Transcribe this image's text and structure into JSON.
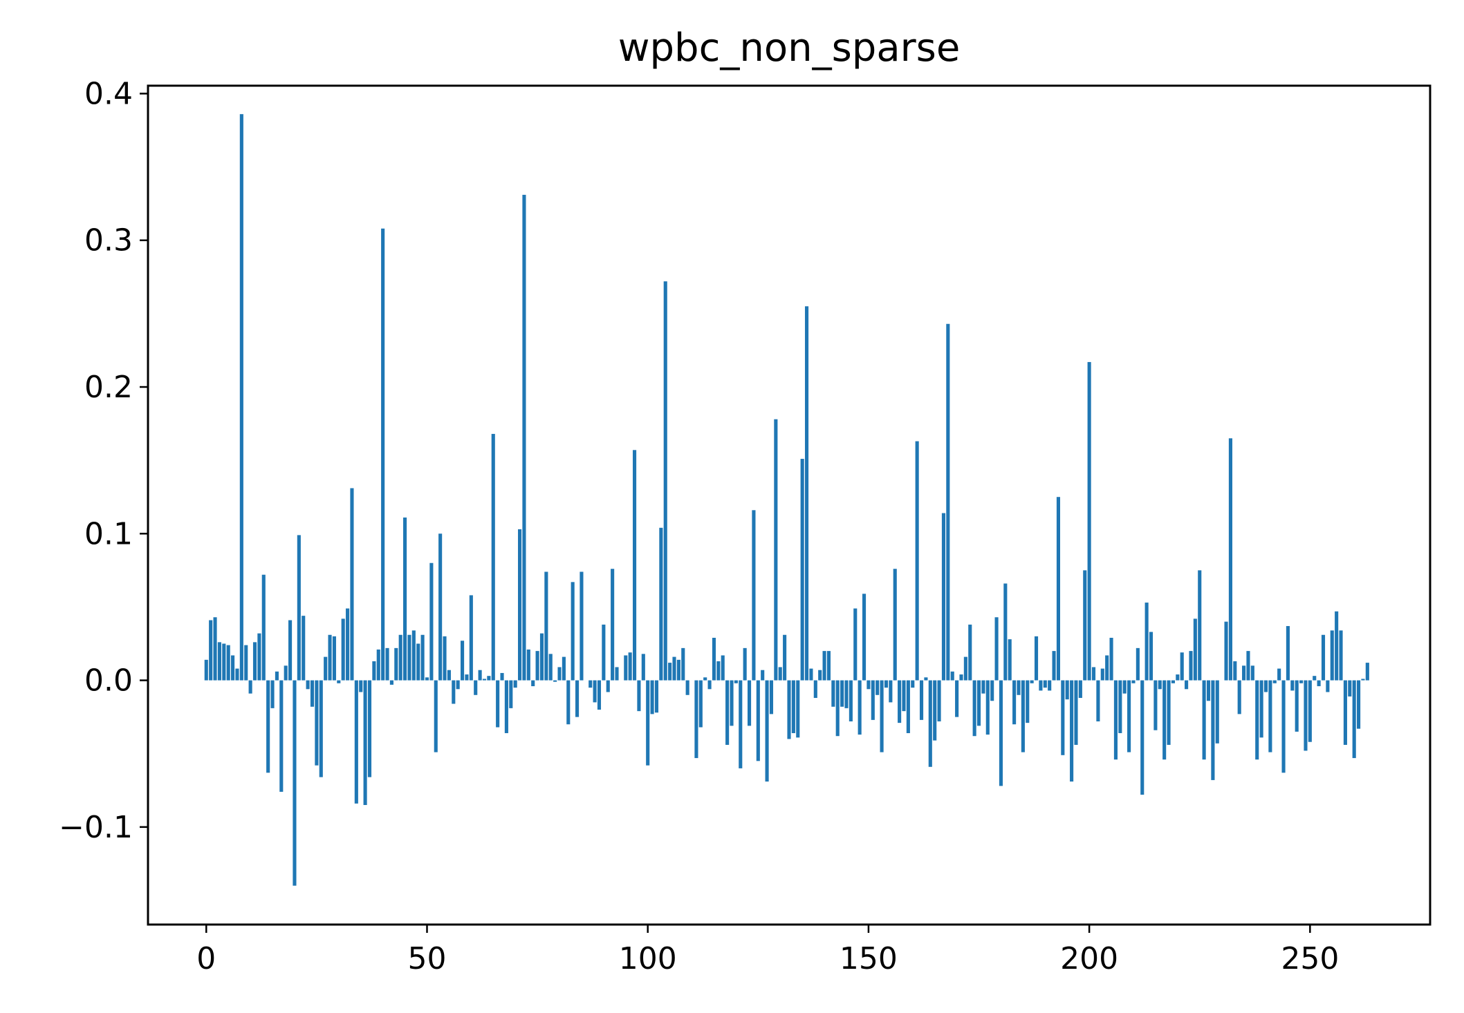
{
  "chart_data": {
    "type": "bar",
    "title": "wpbc_non_sparse",
    "xlabel": "",
    "ylabel": "",
    "xlim": [
      -13.2,
      277.2
    ],
    "ylim": [
      -0.1665,
      0.4054
    ],
    "xticks": [
      0,
      50,
      100,
      150,
      200,
      250
    ],
    "xtick_labels": [
      "0",
      "50",
      "100",
      "150",
      "200",
      "250"
    ],
    "yticks": [
      -0.1,
      0.0,
      0.1,
      0.2,
      0.3,
      0.4
    ],
    "ytick_labels": [
      "−0.1",
      "0.0",
      "0.1",
      "0.2",
      "0.3",
      "0.4"
    ],
    "bar_color": "#1f77b4",
    "grid": false,
    "x": [
      0,
      1,
      2,
      3,
      4,
      5,
      6,
      7,
      8,
      9,
      10,
      11,
      12,
      13,
      14,
      15,
      16,
      17,
      18,
      19,
      20,
      21,
      22,
      23,
      24,
      25,
      26,
      27,
      28,
      29,
      30,
      31,
      32,
      33,
      34,
      35,
      36,
      37,
      38,
      39,
      40,
      41,
      42,
      43,
      44,
      45,
      46,
      47,
      48,
      49,
      50,
      51,
      52,
      53,
      54,
      55,
      56,
      57,
      58,
      59,
      60,
      61,
      62,
      63,
      64,
      65,
      66,
      67,
      68,
      69,
      70,
      71,
      72,
      73,
      74,
      75,
      76,
      77,
      78,
      79,
      80,
      81,
      82,
      83,
      84,
      85,
      86,
      87,
      88,
      89,
      90,
      91,
      92,
      93,
      94,
      95,
      96,
      97,
      98,
      99,
      100,
      101,
      102,
      103,
      104,
      105,
      106,
      107,
      108,
      109,
      110,
      111,
      112,
      113,
      114,
      115,
      116,
      117,
      118,
      119,
      120,
      121,
      122,
      123,
      124,
      125,
      126,
      127,
      128,
      129,
      130,
      131,
      132,
      133,
      134,
      135,
      136,
      137,
      138,
      139,
      140,
      141,
      142,
      143,
      144,
      145,
      146,
      147,
      148,
      149,
      150,
      151,
      152,
      153,
      154,
      155,
      156,
      157,
      158,
      159,
      160,
      161,
      162,
      163,
      164,
      165,
      166,
      167,
      168,
      169,
      170,
      171,
      172,
      173,
      174,
      175,
      176,
      177,
      178,
      179,
      180,
      181,
      182,
      183,
      184,
      185,
      186,
      187,
      188,
      189,
      190,
      191,
      192,
      193,
      194,
      195,
      196,
      197,
      198,
      199,
      200,
      201,
      202,
      203,
      204,
      205,
      206,
      207,
      208,
      209,
      210,
      211,
      212,
      213,
      214,
      215,
      216,
      217,
      218,
      219,
      220,
      221,
      222,
      223,
      224,
      225,
      226,
      227,
      228,
      229,
      230,
      231,
      232,
      233,
      234,
      235,
      236,
      237,
      238,
      239,
      240,
      241,
      242,
      243,
      244,
      245,
      246,
      247,
      248,
      249,
      250,
      251,
      252,
      253,
      254,
      255,
      256,
      257,
      258,
      259,
      260,
      261,
      262,
      263
    ],
    "values": [
      0.014,
      0.041,
      0.043,
      0.026,
      0.025,
      0.024,
      0.017,
      0.008,
      0.386,
      0.024,
      -0.009,
      0.026,
      0.032,
      0.072,
      -0.063,
      -0.019,
      0.006,
      -0.076,
      0.01,
      0.041,
      -0.14,
      0.099,
      0.044,
      -0.006,
      -0.018,
      -0.058,
      -0.066,
      0.016,
      0.031,
      0.03,
      -0.002,
      0.042,
      0.049,
      0.131,
      -0.084,
      -0.008,
      -0.085,
      -0.066,
      0.013,
      0.021,
      0.308,
      0.022,
      -0.003,
      0.022,
      0.031,
      0.111,
      0.031,
      0.034,
      0.025,
      0.031,
      0.002,
      0.08,
      -0.049,
      0.1,
      0.03,
      0.007,
      -0.016,
      -0.006,
      0.027,
      0.004,
      0.058,
      -0.01,
      0.007,
      0.001,
      0.003,
      0.168,
      -0.032,
      0.005,
      -0.036,
      -0.019,
      -0.005,
      0.103,
      0.331,
      0.021,
      -0.004,
      0.02,
      0.032,
      0.074,
      0.018,
      -0.001,
      0.009,
      0.016,
      -0.03,
      0.067,
      -0.025,
      0.074,
      0.0,
      -0.005,
      -0.015,
      -0.02,
      0.038,
      -0.008,
      0.076,
      0.009,
      0.0,
      0.017,
      0.019,
      0.157,
      -0.021,
      0.018,
      -0.058,
      -0.023,
      -0.022,
      0.104,
      0.272,
      0.012,
      0.016,
      0.014,
      0.022,
      -0.01,
      0.0,
      -0.053,
      -0.032,
      0.002,
      -0.006,
      0.029,
      0.013,
      0.017,
      -0.044,
      -0.031,
      -0.002,
      -0.06,
      0.022,
      -0.031,
      0.116,
      -0.055,
      0.007,
      -0.069,
      -0.023,
      0.178,
      0.009,
      0.031,
      -0.04,
      -0.036,
      -0.039,
      0.151,
      0.255,
      0.008,
      -0.012,
      0.007,
      0.02,
      0.02,
      -0.018,
      -0.038,
      -0.018,
      -0.019,
      -0.028,
      0.049,
      -0.037,
      0.059,
      -0.006,
      -0.027,
      -0.01,
      -0.049,
      -0.005,
      -0.015,
      0.076,
      -0.029,
      -0.021,
      -0.036,
      -0.005,
      0.163,
      -0.027,
      0.002,
      -0.059,
      -0.041,
      -0.028,
      0.114,
      0.243,
      0.006,
      -0.025,
      0.004,
      0.016,
      0.038,
      -0.038,
      -0.031,
      -0.009,
      -0.037,
      -0.014,
      0.043,
      -0.072,
      0.066,
      0.028,
      -0.03,
      -0.01,
      -0.049,
      -0.029,
      -0.002,
      0.03,
      -0.007,
      -0.005,
      -0.007,
      0.02,
      0.125,
      -0.051,
      -0.013,
      -0.069,
      -0.044,
      -0.012,
      0.075,
      0.217,
      0.009,
      -0.028,
      0.008,
      0.017,
      0.029,
      -0.054,
      -0.036,
      -0.009,
      -0.049,
      -0.002,
      0.022,
      -0.078,
      0.053,
      0.033,
      -0.034,
      -0.006,
      -0.054,
      -0.044,
      -0.002,
      0.004,
      0.019,
      -0.006,
      0.02,
      0.042,
      0.075,
      -0.054,
      -0.014,
      -0.068,
      -0.043,
      0.0,
      0.04,
      0.165,
      0.013,
      -0.023,
      0.01,
      0.02,
      0.01,
      -0.054,
      -0.039,
      -0.008,
      -0.049,
      -0.002,
      0.008,
      -0.063,
      0.037,
      -0.007,
      -0.035,
      -0.002,
      -0.048,
      -0.042,
      0.003,
      -0.004,
      0.031,
      -0.008,
      0.034,
      0.047,
      0.034,
      -0.044,
      -0.011,
      -0.053,
      -0.033,
      0.001,
      0.012
    ]
  }
}
